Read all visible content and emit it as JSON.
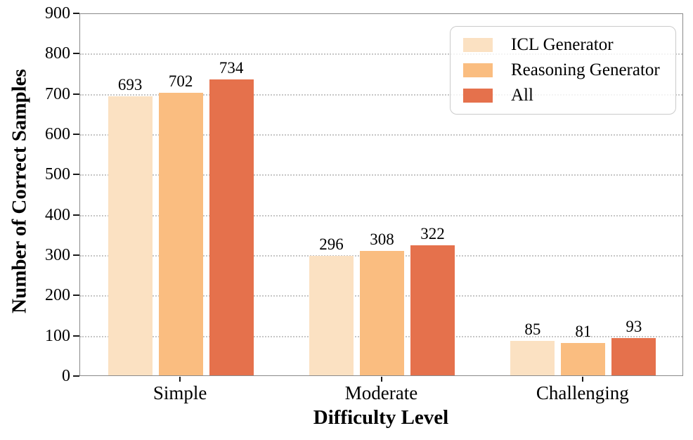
{
  "chart_data": {
    "type": "bar",
    "title": "",
    "xlabel": "Difficulty Level",
    "ylabel": "Number of Correct Samples",
    "categories": [
      "Simple",
      "Moderate",
      "Challenging"
    ],
    "series": [
      {
        "name": "ICL Generator",
        "color": "#FBE1C2",
        "values": [
          693,
          296,
          85
        ]
      },
      {
        "name": "Reasoning Generator",
        "color": "#FABD80",
        "values": [
          702,
          308,
          81
        ]
      },
      {
        "name": "All",
        "color": "#E5714C",
        "values": [
          734,
          322,
          93
        ]
      }
    ],
    "ylim": [
      0,
      900
    ],
    "ytick_step": 100,
    "yticks": [
      0,
      100,
      200,
      300,
      400,
      500,
      600,
      700,
      800,
      900
    ],
    "grid": "horizontal-dotted",
    "legend_position": "upper-right",
    "bar_value_labels": true,
    "colors": {
      "spine": "#8a8a8a",
      "gridline": "#c6c6c6",
      "tick": "#1a1a1a",
      "text": "#000000",
      "legend_border": "#cbcbcb"
    }
  }
}
